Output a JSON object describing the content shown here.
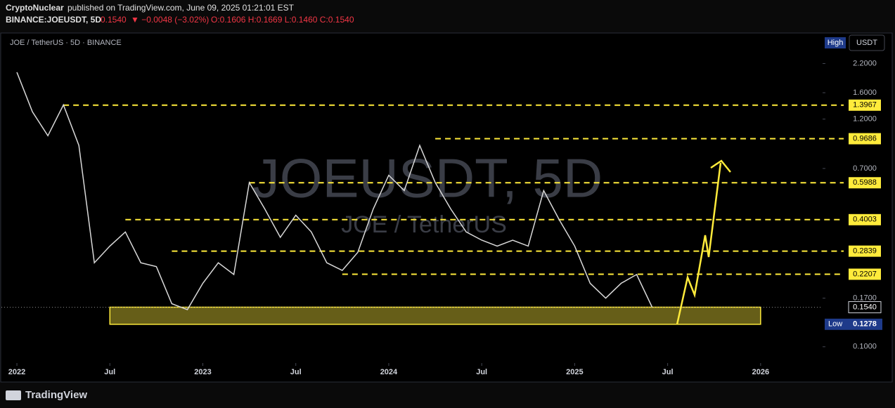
{
  "header": {
    "author": "CryptoNuclear",
    "published": "published on TradingView.com, June 09, 2025 01:21:01 EST",
    "symbol": "BINANCE:JOEUSDT, 5D",
    "last": "0.1540",
    "change": "▼ −0.0048 (−3.02%)",
    "ohlc": "O:0.1606 H:0.1669 L:0.1460 C:0.1540"
  },
  "footer": {
    "brand": "TradingView"
  },
  "chart_data": {
    "type": "line",
    "title": "JOE / TetherUS · 5D · BINANCE",
    "watermark": "JOEUSDT, 5D",
    "watermark_sub": "JOE / TetherUS",
    "currency": "USDT",
    "high_label": "High",
    "low_label": "Low",
    "log_scale": true,
    "x": [
      "2022-01",
      "2022-02",
      "2022-03",
      "2022-04",
      "2022-05",
      "2022-06",
      "2022-07",
      "2022-08",
      "2022-09",
      "2022-10",
      "2022-11",
      "2022-12",
      "2023-01",
      "2023-02",
      "2023-03",
      "2023-04",
      "2023-05",
      "2023-06",
      "2023-07",
      "2023-08",
      "2023-09",
      "2023-10",
      "2023-11",
      "2023-12",
      "2024-01",
      "2024-02",
      "2024-03",
      "2024-04",
      "2024-05",
      "2024-06",
      "2024-07",
      "2024-08",
      "2024-09",
      "2024-10",
      "2024-11",
      "2024-12",
      "2025-01",
      "2025-02",
      "2025-03",
      "2025-04",
      "2025-05",
      "2025-06"
    ],
    "series": [
      {
        "color": "#d9d9d9",
        "values": [
          2.0,
          1.3,
          1.0,
          1.4,
          0.9,
          0.25,
          0.3,
          0.35,
          0.25,
          0.24,
          0.16,
          0.15,
          0.2,
          0.25,
          0.22,
          0.6,
          0.45,
          0.33,
          0.42,
          0.35,
          0.25,
          0.23,
          0.28,
          0.45,
          0.65,
          0.55,
          0.9,
          0.6,
          0.45,
          0.35,
          0.32,
          0.3,
          0.32,
          0.3,
          0.55,
          0.4,
          0.3,
          0.2,
          0.17,
          0.2,
          0.22,
          0.154
        ]
      }
    ],
    "xlim": [
      "2021-12",
      "2026-05"
    ],
    "ylim": [
      0.085,
      3.0
    ],
    "yticks": [
      {
        "value": 2.2,
        "label": "2.2000"
      },
      {
        "value": 1.6,
        "label": "1.6000"
      },
      {
        "value": 1.2,
        "label": "1.2000"
      },
      {
        "value": 0.7,
        "label": "0.7000"
      },
      {
        "value": 0.17,
        "label": "0.1700"
      },
      {
        "value": 0.1,
        "label": "0.1000"
      }
    ],
    "xticks": [
      {
        "value": "2022-01",
        "label": "2022"
      },
      {
        "value": "2022-07",
        "label": "Jul"
      },
      {
        "value": "2023-01",
        "label": "2023"
      },
      {
        "value": "2023-07",
        "label": "Jul"
      },
      {
        "value": "2024-01",
        "label": "2024"
      },
      {
        "value": "2024-07",
        "label": "Jul"
      },
      {
        "value": "2025-01",
        "label": "2025"
      },
      {
        "value": "2025-07",
        "label": "Jul"
      },
      {
        "value": "2026-01",
        "label": "2026"
      }
    ],
    "levels": [
      {
        "value": 1.3967,
        "from": "2022-04"
      },
      {
        "value": 0.9686,
        "from": "2024-04"
      },
      {
        "value": 0.5988,
        "from": "2023-04"
      },
      {
        "value": 0.4003,
        "from": "2022-08"
      },
      {
        "value": 0.2839,
        "from": "2022-11"
      },
      {
        "value": 0.2207,
        "from": "2023-10"
      }
    ],
    "level_color": "#ffeb3b",
    "zone": {
      "low": 0.1278,
      "high": {
        "value": 0.154,
        "label": "0.1540"
      },
      "from": "2022-07",
      "to": "2026-01"
    }
  }
}
